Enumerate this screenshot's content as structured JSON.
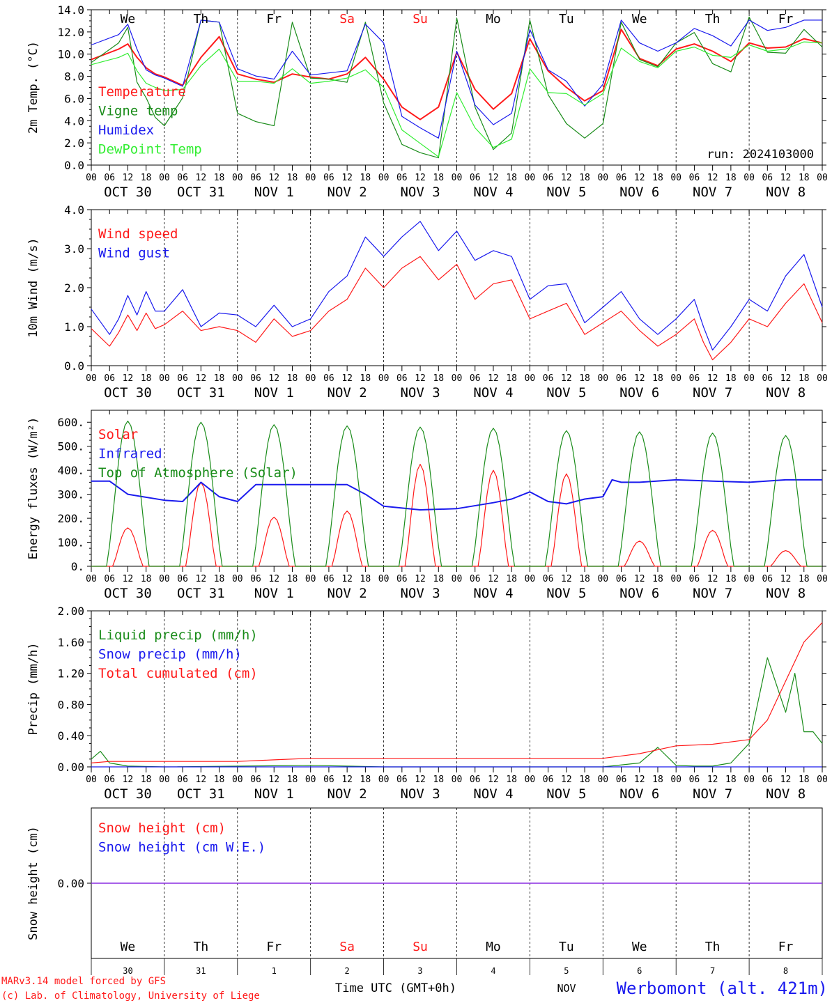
{
  "colors": {
    "red": "#ff1a1a",
    "green": "#1a8c1a",
    "blue": "#1a1aee",
    "lightgreen": "#33ee33",
    "purple": "#8a2be2",
    "darkgreen": "#1a7a1a"
  },
  "days": [
    {
      "label": "OCT 30",
      "dow": "We",
      "num": "30",
      "weekend": false
    },
    {
      "label": "OCT 31",
      "dow": "Th",
      "num": "31",
      "weekend": false
    },
    {
      "label": "NOV  1",
      "dow": "Fr",
      "num": "1",
      "weekend": false
    },
    {
      "label": "NOV  2",
      "dow": "Sa",
      "num": "2",
      "weekend": true
    },
    {
      "label": "NOV  3",
      "dow": "Su",
      "num": "3",
      "weekend": true
    },
    {
      "label": "NOV  4",
      "dow": "Mo",
      "num": "4",
      "weekend": false
    },
    {
      "label": "NOV  5",
      "dow": "Tu",
      "num": "5",
      "weekend": false
    },
    {
      "label": "NOV  6",
      "dow": "We",
      "num": "6",
      "weekend": false
    },
    {
      "label": "NOV  7",
      "dow": "Th",
      "num": "7",
      "weekend": false
    },
    {
      "label": "NOV  8",
      "dow": "Fr",
      "num": "8",
      "weekend": false
    }
  ],
  "hour_ticks": [
    "00",
    "06",
    "12",
    "18"
  ],
  "footer": {
    "credit1": "MARv3.14 model forced by GFS",
    "credit2": "(c) Lab. of Climatology, University of Liege",
    "xlabel": "Time UTC (GMT+0h)",
    "nov": "NOV",
    "station": "Werbomont (alt. 421m)"
  },
  "chart_data": [
    {
      "type": "line",
      "ylabel": "2m Temp. (°C)",
      "ylim": [
        0,
        15
      ],
      "yticks": [
        "0.0",
        "2.0",
        "4.0",
        "6.0",
        "8.0",
        "10.0",
        "12.0",
        "14.0"
      ],
      "annotation": "run: 2024103000",
      "x": [
        0,
        9,
        12,
        15,
        18,
        21,
        24,
        30,
        36,
        42,
        48,
        54,
        60,
        66,
        72,
        78,
        84,
        90,
        96,
        102,
        108,
        114,
        120,
        126,
        132,
        138,
        144,
        150,
        156,
        162,
        168,
        174,
        180,
        186,
        192,
        198,
        204,
        210,
        216,
        222,
        228,
        234,
        240
      ],
      "series": [
        {
          "name": "Temperature",
          "color": "red",
          "values": [
            10.2,
            11.2,
            11.7,
            10.4,
            9.4,
            8.8,
            8.5,
            7.7,
            10.4,
            12.4,
            8.8,
            8.3,
            8.0,
            8.8,
            8.5,
            8.3,
            8.8,
            10.4,
            8.3,
            5.6,
            4.4,
            5.6,
            10.9,
            7.3,
            5.4,
            6.9,
            12.2,
            9.1,
            7.5,
            6.2,
            7.2,
            13.1,
            10.3,
            9.6,
            11.2,
            11.7,
            11.0,
            10.0,
            11.8,
            11.3,
            11.4,
            12.2,
            11.8
          ]
        },
        {
          "name": "Vigne temp",
          "color": "green",
          "values": [
            9.9,
            11.8,
            13.3,
            8.0,
            6.5,
            4.6,
            3.8,
            6.5,
            14.0,
            13.8,
            5.0,
            4.2,
            3.8,
            13.8,
            8.4,
            8.3,
            8.0,
            13.8,
            6.0,
            2.0,
            1.2,
            0.7,
            14.2,
            5.6,
            1.5,
            3.1,
            14.0,
            6.8,
            4.0,
            2.6,
            4.0,
            13.8,
            10.2,
            9.5,
            11.8,
            12.8,
            9.8,
            9.0,
            14.3,
            10.9,
            10.8,
            13.1,
            11.4
          ]
        },
        {
          "name": "Humidex",
          "color": "blue",
          "values": [
            11.6,
            12.6,
            13.6,
            11.2,
            9.2,
            8.7,
            8.4,
            7.6,
            14.0,
            13.8,
            9.3,
            8.6,
            8.3,
            11.0,
            8.7,
            8.9,
            9.1,
            13.6,
            11.8,
            4.7,
            3.6,
            2.6,
            11.0,
            5.8,
            3.9,
            5.0,
            13.1,
            9.2,
            8.1,
            5.7,
            7.8,
            14.0,
            11.8,
            11.0,
            11.8,
            13.2,
            12.5,
            11.5,
            14.0,
            13.0,
            13.3,
            14.0,
            14.0
          ]
        },
        {
          "name": "DewPoint Temp",
          "color": "lightgreen",
          "values": [
            9.7,
            10.4,
            10.8,
            9.1,
            7.9,
            7.5,
            7.2,
            7.3,
            9.6,
            11.2,
            8.1,
            8.1,
            7.9,
            9.3,
            7.9,
            8.1,
            8.4,
            9.2,
            7.5,
            3.4,
            2.1,
            0.8,
            7.0,
            3.6,
            1.7,
            2.5,
            9.3,
            7.0,
            6.9,
            5.8,
            6.9,
            11.3,
            10.0,
            9.4,
            11.0,
            11.4,
            10.6,
            10.4,
            11.6,
            11.0,
            11.2,
            11.9,
            11.8
          ]
        }
      ]
    },
    {
      "type": "line",
      "ylabel": "10m Wind (m/s)",
      "ylim": [
        0,
        4
      ],
      "yticks": [
        "0.0",
        "1.0",
        "2.0",
        "3.0",
        "4.0"
      ],
      "x": [
        0,
        6,
        9,
        12,
        15,
        18,
        21,
        24,
        30,
        36,
        42,
        48,
        54,
        60,
        66,
        72,
        78,
        84,
        90,
        96,
        102,
        108,
        114,
        120,
        126,
        132,
        138,
        144,
        150,
        156,
        162,
        168,
        174,
        180,
        186,
        192,
        198,
        201,
        204,
        210,
        216,
        222,
        228,
        234,
        240
      ],
      "series": [
        {
          "name": "Wind speed",
          "color": "red",
          "values": [
            0.95,
            0.5,
            0.85,
            1.3,
            0.9,
            1.35,
            0.95,
            1.05,
            1.4,
            0.9,
            1.0,
            0.9,
            0.6,
            1.2,
            0.75,
            0.9,
            1.4,
            1.7,
            2.5,
            2.0,
            2.5,
            2.8,
            2.2,
            2.6,
            1.7,
            2.1,
            2.2,
            1.2,
            1.4,
            1.6,
            0.8,
            1.1,
            1.4,
            0.9,
            0.5,
            0.8,
            1.2,
            0.6,
            0.15,
            0.6,
            1.2,
            1.0,
            1.6,
            2.1,
            1.1
          ]
        },
        {
          "name": "Wind gust",
          "color": "blue",
          "values": [
            1.45,
            0.8,
            1.2,
            1.8,
            1.3,
            1.9,
            1.4,
            1.4,
            1.95,
            1.0,
            1.35,
            1.3,
            1.0,
            1.55,
            1.0,
            1.2,
            1.9,
            2.3,
            3.3,
            2.8,
            3.3,
            3.7,
            2.95,
            3.45,
            2.7,
            2.95,
            2.8,
            1.7,
            2.05,
            2.1,
            1.1,
            1.5,
            1.9,
            1.2,
            0.8,
            1.2,
            1.7,
            1.0,
            0.4,
            1.0,
            1.7,
            1.4,
            2.3,
            2.85,
            1.5
          ]
        }
      ]
    },
    {
      "type": "line",
      "ylabel": "Energy fluxes (W/m²)",
      "ylim": [
        0,
        650
      ],
      "yticks": [
        "0.",
        "100.",
        "200.",
        "300.",
        "400.",
        "500.",
        "600."
      ],
      "daily_peak_hour": 12,
      "series": [
        {
          "name": "Solar",
          "color": "red",
          "daily_peaks": [
            160,
            350,
            205,
            230,
            425,
            400,
            385,
            105,
            150,
            65
          ]
        },
        {
          "name": "Infrared",
          "color": "blue",
          "x": [
            0,
            6,
            12,
            24,
            30,
            36,
            42,
            48,
            54,
            72,
            84,
            90,
            96,
            108,
            120,
            132,
            138,
            144,
            150,
            156,
            162,
            168,
            171,
            174,
            180,
            192,
            204,
            216,
            228,
            240
          ],
          "values": [
            355,
            355,
            300,
            275,
            270,
            350,
            290,
            270,
            340,
            340,
            340,
            300,
            250,
            235,
            240,
            265,
            280,
            310,
            270,
            260,
            280,
            290,
            360,
            350,
            350,
            360,
            355,
            350,
            360,
            360
          ]
        },
        {
          "name": "Top of Atmosphere (Solar)",
          "color": "green",
          "daily_peaks": [
            605,
            600,
            590,
            585,
            580,
            575,
            565,
            560,
            555,
            545
          ]
        }
      ]
    },
    {
      "type": "line",
      "ylabel": "Precip (mm/h)",
      "ylim": [
        0,
        2
      ],
      "yticks": [
        "0.00",
        "0.40",
        "0.80",
        "1.20",
        "1.60",
        "2.00"
      ],
      "series": [
        {
          "name": "Liquid precip (mm/h)",
          "color": "green",
          "x": [
            0,
            3,
            6,
            12,
            24,
            72,
            96,
            168,
            180,
            186,
            192,
            198,
            204,
            210,
            216,
            222,
            228,
            231,
            234,
            237,
            240
          ],
          "values": [
            0.1,
            0.2,
            0.05,
            0.01,
            0.0,
            0.02,
            0.0,
            0.0,
            0.05,
            0.25,
            0.02,
            0.01,
            0.01,
            0.05,
            0.3,
            1.4,
            0.7,
            1.2,
            0.45,
            0.45,
            0.3
          ]
        },
        {
          "name": "Snow precip (mm/h)",
          "color": "blue",
          "x": [
            0,
            240
          ],
          "values": [
            0.0,
            0.0
          ]
        },
        {
          "name": "Total cumulated (cm)",
          "color": "red",
          "x": [
            0,
            6,
            12,
            48,
            60,
            72,
            84,
            168,
            180,
            192,
            204,
            216,
            222,
            228,
            234,
            240
          ],
          "values": [
            0.05,
            0.07,
            0.07,
            0.07,
            0.09,
            0.11,
            0.11,
            0.11,
            0.17,
            0.27,
            0.29,
            0.35,
            0.6,
            1.1,
            1.6,
            1.85
          ]
        }
      ]
    },
    {
      "type": "line",
      "ylabel": "Snow height (cm)",
      "yticks": [
        "0.00"
      ],
      "series": [
        {
          "name": "Snow height (cm)",
          "color": "red",
          "x": [
            0,
            240
          ],
          "values": [
            0,
            0
          ]
        },
        {
          "name": "Snow height (cm W.E.)",
          "color": "blue",
          "x": [
            0,
            240
          ],
          "values": [
            0,
            0
          ]
        }
      ]
    }
  ]
}
